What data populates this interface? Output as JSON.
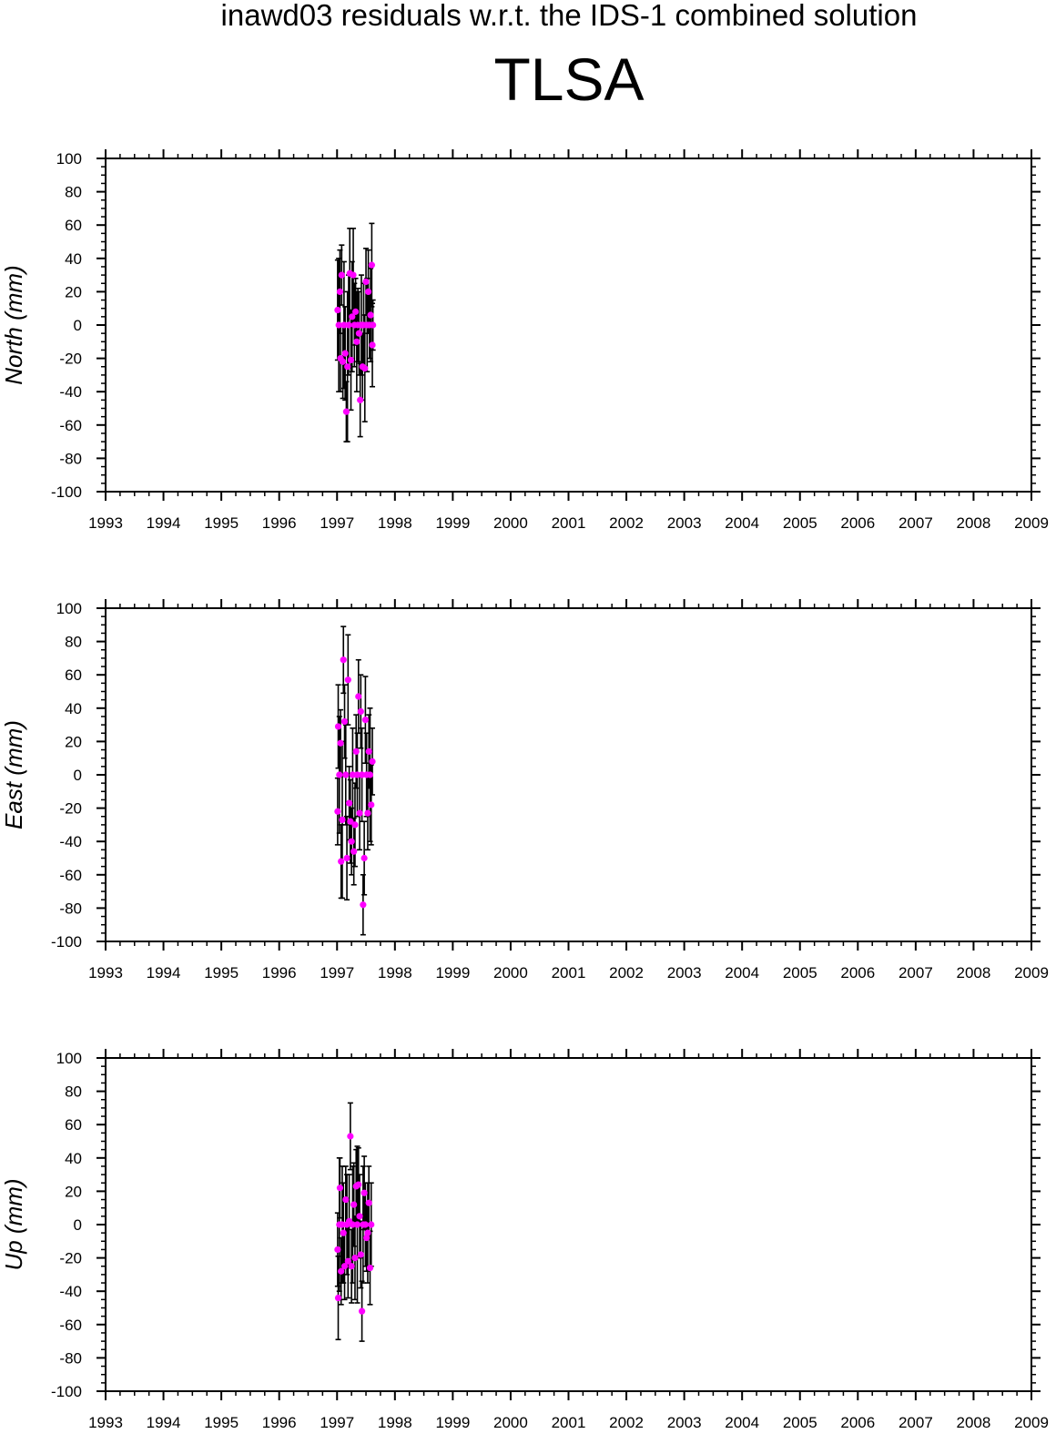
{
  "supertitle": "inawd03 residuals w.r.t. the IDS-1 combined solution",
  "station": "TLSA",
  "colors": {
    "point": "#ff00ff",
    "errorbar": "#000000",
    "axis": "#000000",
    "background": "#ffffff"
  },
  "chart_data": [
    {
      "type": "scatter",
      "ylabel": "North (mm)",
      "xlim": [
        1993,
        2009
      ],
      "ylim": [
        -100,
        100
      ],
      "xticks": [
        "1993",
        "1994",
        "1995",
        "1996",
        "1997",
        "1998",
        "1999",
        "2000",
        "2001",
        "2002",
        "2003",
        "2004",
        "2005",
        "2006",
        "2007",
        "2008",
        "2009"
      ],
      "yticks": [
        "100",
        "80",
        "60",
        "40",
        "20",
        "0",
        "-20",
        "-40",
        "-60",
        "-80",
        "-100"
      ],
      "error_bars": true,
      "grid": false,
      "points": [
        {
          "x": 1997.01,
          "y": 9,
          "err": 30
        },
        {
          "x": 1997.03,
          "y": 0,
          "err": 40
        },
        {
          "x": 1997.05,
          "y": 20,
          "err": 25
        },
        {
          "x": 1997.06,
          "y": -20,
          "err": 20
        },
        {
          "x": 1997.08,
          "y": 30,
          "err": 18
        },
        {
          "x": 1997.1,
          "y": -22,
          "err": 22
        },
        {
          "x": 1997.12,
          "y": 0,
          "err": 38
        },
        {
          "x": 1997.14,
          "y": -17,
          "err": 28
        },
        {
          "x": 1997.16,
          "y": -52,
          "err": 18
        },
        {
          "x": 1997.18,
          "y": -25,
          "err": 45
        },
        {
          "x": 1997.2,
          "y": 0,
          "err": 30
        },
        {
          "x": 1997.22,
          "y": 31,
          "err": 27
        },
        {
          "x": 1997.24,
          "y": -21,
          "err": 30
        },
        {
          "x": 1997.26,
          "y": 5,
          "err": 33
        },
        {
          "x": 1997.28,
          "y": 30,
          "err": 28
        },
        {
          "x": 1997.3,
          "y": 0,
          "err": 25
        },
        {
          "x": 1997.32,
          "y": 8,
          "err": 20
        },
        {
          "x": 1997.34,
          "y": -10,
          "err": 30
        },
        {
          "x": 1997.36,
          "y": 0,
          "err": 22
        },
        {
          "x": 1997.38,
          "y": -5,
          "err": 25
        },
        {
          "x": 1997.4,
          "y": -45,
          "err": 22
        },
        {
          "x": 1997.42,
          "y": 0,
          "err": 30
        },
        {
          "x": 1997.44,
          "y": -25,
          "err": 20
        },
        {
          "x": 1997.46,
          "y": 0,
          "err": 25
        },
        {
          "x": 1997.48,
          "y": -26,
          "err": 32
        },
        {
          "x": 1997.5,
          "y": 26,
          "err": 20
        },
        {
          "x": 1997.52,
          "y": 0,
          "err": 28
        },
        {
          "x": 1997.54,
          "y": 20,
          "err": 25
        },
        {
          "x": 1997.56,
          "y": 0,
          "err": 20
        },
        {
          "x": 1997.58,
          "y": 6,
          "err": 28
        },
        {
          "x": 1997.6,
          "y": 36,
          "err": 25
        },
        {
          "x": 1997.61,
          "y": -12,
          "err": 25
        },
        {
          "x": 1997.62,
          "y": 0,
          "err": 15
        }
      ]
    },
    {
      "type": "scatter",
      "ylabel": "East (mm)",
      "xlim": [
        1993,
        2009
      ],
      "ylim": [
        -100,
        100
      ],
      "xticks": [
        "1993",
        "1994",
        "1995",
        "1996",
        "1997",
        "1998",
        "1999",
        "2000",
        "2001",
        "2002",
        "2003",
        "2004",
        "2005",
        "2006",
        "2007",
        "2008",
        "2009"
      ],
      "yticks": [
        "100",
        "80",
        "60",
        "40",
        "20",
        "0",
        "-20",
        "-40",
        "-60",
        "-80",
        "-100"
      ],
      "error_bars": true,
      "grid": false,
      "points": [
        {
          "x": 1997.01,
          "y": -22,
          "err": 20
        },
        {
          "x": 1997.02,
          "y": 29,
          "err": 25
        },
        {
          "x": 1997.04,
          "y": 0,
          "err": 35
        },
        {
          "x": 1997.06,
          "y": 19,
          "err": 20
        },
        {
          "x": 1997.07,
          "y": -52,
          "err": 22
        },
        {
          "x": 1997.09,
          "y": -27,
          "err": 47
        },
        {
          "x": 1997.11,
          "y": 69,
          "err": 20
        },
        {
          "x": 1997.13,
          "y": 32,
          "err": 22
        },
        {
          "x": 1997.15,
          "y": 0,
          "err": 30
        },
        {
          "x": 1997.17,
          "y": -50,
          "err": 25
        },
        {
          "x": 1997.19,
          "y": 57,
          "err": 27
        },
        {
          "x": 1997.21,
          "y": -17,
          "err": 22
        },
        {
          "x": 1997.23,
          "y": -28,
          "err": 25
        },
        {
          "x": 1997.25,
          "y": -40,
          "err": 20
        },
        {
          "x": 1997.27,
          "y": 0,
          "err": 28
        },
        {
          "x": 1997.29,
          "y": -46,
          "err": 20
        },
        {
          "x": 1997.31,
          "y": -30,
          "err": 25
        },
        {
          "x": 1997.33,
          "y": 14,
          "err": 22
        },
        {
          "x": 1997.35,
          "y": 0,
          "err": 25
        },
        {
          "x": 1997.37,
          "y": 47,
          "err": 22
        },
        {
          "x": 1997.39,
          "y": -23,
          "err": 22
        },
        {
          "x": 1997.41,
          "y": 38,
          "err": 22
        },
        {
          "x": 1997.43,
          "y": 0,
          "err": 28
        },
        {
          "x": 1997.45,
          "y": -78,
          "err": 18
        },
        {
          "x": 1997.47,
          "y": -50,
          "err": 22
        },
        {
          "x": 1997.49,
          "y": 33,
          "err": 26
        },
        {
          "x": 1997.51,
          "y": 0,
          "err": 25
        },
        {
          "x": 1997.53,
          "y": -23,
          "err": 22
        },
        {
          "x": 1997.55,
          "y": 14,
          "err": 22
        },
        {
          "x": 1997.57,
          "y": 0,
          "err": 40
        },
        {
          "x": 1997.59,
          "y": -18,
          "err": 24
        },
        {
          "x": 1997.61,
          "y": 8,
          "err": 20
        }
      ]
    },
    {
      "type": "scatter",
      "ylabel": "Up (mm)",
      "xlim": [
        1993,
        2009
      ],
      "ylim": [
        -100,
        100
      ],
      "xticks": [
        "1993",
        "1994",
        "1995",
        "1996",
        "1997",
        "1998",
        "1999",
        "2000",
        "2001",
        "2002",
        "2003",
        "2004",
        "2005",
        "2006",
        "2007",
        "2008",
        "2009"
      ],
      "yticks": [
        "100",
        "80",
        "60",
        "40",
        "20",
        "0",
        "-20",
        "-40",
        "-60",
        "-80",
        "-100"
      ],
      "error_bars": true,
      "grid": false,
      "points": [
        {
          "x": 1997.01,
          "y": -15,
          "err": 22
        },
        {
          "x": 1997.02,
          "y": -44,
          "err": 25
        },
        {
          "x": 1997.04,
          "y": 0,
          "err": 40
        },
        {
          "x": 1997.05,
          "y": 22,
          "err": 18
        },
        {
          "x": 1997.07,
          "y": -28,
          "err": 20
        },
        {
          "x": 1997.09,
          "y": 0,
          "err": 35
        },
        {
          "x": 1997.11,
          "y": -5,
          "err": 30
        },
        {
          "x": 1997.13,
          "y": -25,
          "err": 20
        },
        {
          "x": 1997.15,
          "y": 15,
          "err": 20
        },
        {
          "x": 1997.17,
          "y": 0,
          "err": 30
        },
        {
          "x": 1997.19,
          "y": -22,
          "err": 22
        },
        {
          "x": 1997.21,
          "y": 2,
          "err": 28
        },
        {
          "x": 1997.23,
          "y": 53,
          "err": 20
        },
        {
          "x": 1997.25,
          "y": -25,
          "err": 22
        },
        {
          "x": 1997.27,
          "y": 0,
          "err": 35
        },
        {
          "x": 1997.29,
          "y": 12,
          "err": 25
        },
        {
          "x": 1997.31,
          "y": -20,
          "err": 25
        },
        {
          "x": 1997.33,
          "y": 23,
          "err": 22
        },
        {
          "x": 1997.35,
          "y": 0,
          "err": 47
        },
        {
          "x": 1997.37,
          "y": 24,
          "err": 22
        },
        {
          "x": 1997.39,
          "y": 5,
          "err": 25
        },
        {
          "x": 1997.41,
          "y": -18,
          "err": 20
        },
        {
          "x": 1997.43,
          "y": -52,
          "err": 18
        },
        {
          "x": 1997.45,
          "y": 0,
          "err": 35
        },
        {
          "x": 1997.47,
          "y": 19,
          "err": 22
        },
        {
          "x": 1997.49,
          "y": 0,
          "err": 25
        },
        {
          "x": 1997.51,
          "y": -8,
          "err": 20
        },
        {
          "x": 1997.53,
          "y": -5,
          "err": 30
        },
        {
          "x": 1997.55,
          "y": 13,
          "err": 22
        },
        {
          "x": 1997.57,
          "y": -26,
          "err": 22
        },
        {
          "x": 1997.59,
          "y": 0,
          "err": 25
        }
      ]
    }
  ]
}
